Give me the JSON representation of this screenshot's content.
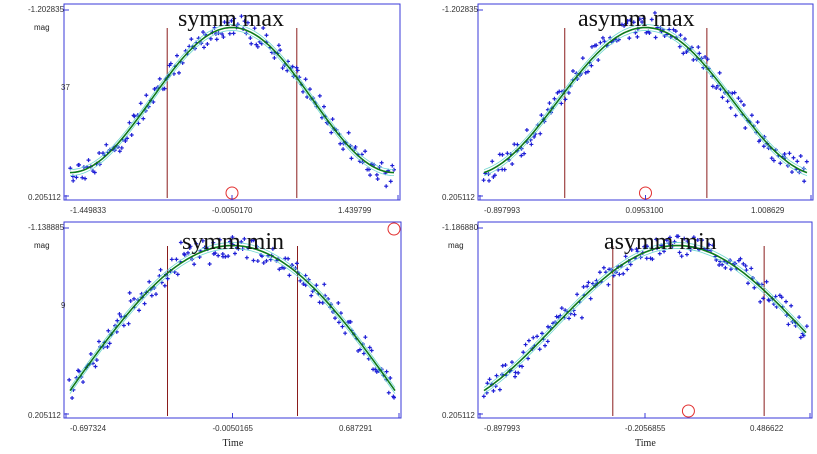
{
  "colors": {
    "points": "#1f1fd6",
    "fit": "#0d7a1a",
    "band": "#6fd7d0",
    "vline": "#8a1c1c",
    "circle": "#e23030",
    "frame": "#3a3ad8"
  },
  "chart_data": [
    {
      "id": "symm-max",
      "type": "scatter",
      "title": "symm max",
      "ylabel": "mag",
      "xlabel": "",
      "xlim": [
        -1.449833,
        1.439799
      ],
      "ylim": [
        -1.202835,
        0.205112
      ],
      "x_ticks": [
        "-1.449833",
        "-0.0050170",
        "1.439799"
      ],
      "y_ticks": [
        "-1.202835",
        "0.205112"
      ],
      "y_edge_label": "37",
      "fit": {
        "shape": "cosine",
        "cycles": 1.0,
        "phase_min": 0.5,
        "amp": 0.55
      },
      "vlines_frac": [
        0.3,
        0.7
      ],
      "highlight_frac": [
        0.5,
        0.99
      ],
      "series": [
        {
          "values_note": "scatter points sampled around fit"
        }
      ]
    },
    {
      "id": "asymm-max",
      "type": "scatter",
      "title": "asymm max",
      "ylabel": "",
      "xlabel": "",
      "xlim": [
        -0.897993,
        1.008629
      ],
      "ylim": [
        -1.202835,
        0.205112
      ],
      "x_ticks": [
        "-0.897993",
        "0.0953100",
        "1.008629"
      ],
      "y_ticks": [
        "-1.202835",
        "0.205112"
      ],
      "y_edge_label": "",
      "fit": {
        "shape": "cosine",
        "cycles": 0.92,
        "phase_min": 0.5,
        "amp": 0.55
      },
      "vlines_frac": [
        0.25,
        0.69
      ],
      "highlight_frac": [
        0.5,
        0.99
      ],
      "series": [
        {
          "values_note": "scatter points sampled around fit"
        }
      ]
    },
    {
      "id": "symm-min",
      "type": "scatter",
      "title": "symm min",
      "ylabel": "mag",
      "xlabel": "Time",
      "xlim": [
        -0.697324,
        0.687291
      ],
      "ylim": [
        -1.138885,
        0.205112
      ],
      "x_ticks": [
        "-0.697324",
        "-0.0050165",
        "0.687291"
      ],
      "y_ticks": [
        "-1.138885",
        "0.205112"
      ],
      "y_edge_label": "9",
      "fit": {
        "shape": "cosine",
        "cycles": 0.5,
        "phase_min": 0.5,
        "amp": 0.75
      },
      "vlines_frac": [
        0.3,
        0.7
      ],
      "highlight_frac": [
        0.99,
        0.02
      ],
      "series": [
        {
          "values_note": "scatter points sampled around fit"
        }
      ]
    },
    {
      "id": "asymm-min",
      "type": "scatter",
      "title": "asymm min",
      "ylabel": "mag",
      "xlabel": "Time",
      "xlim": [
        -0.897993,
        0.486622
      ],
      "ylim": [
        -1.18688,
        0.205112
      ],
      "x_ticks": [
        "-0.897993",
        "-0.2056855",
        "0.486622"
      ],
      "y_ticks": [
        "-1.186880",
        "0.205112"
      ],
      "y_edge_label": "",
      "fit": {
        "shape": "cosine",
        "cycles": 0.65,
        "phase_min": 0.6,
        "amp": 0.75
      },
      "vlines_frac": [
        0.4,
        0.87
      ],
      "highlight_frac": [
        0.63,
        0.99
      ],
      "series": [
        {
          "values_note": "scatter points sampled around fit"
        }
      ]
    }
  ]
}
